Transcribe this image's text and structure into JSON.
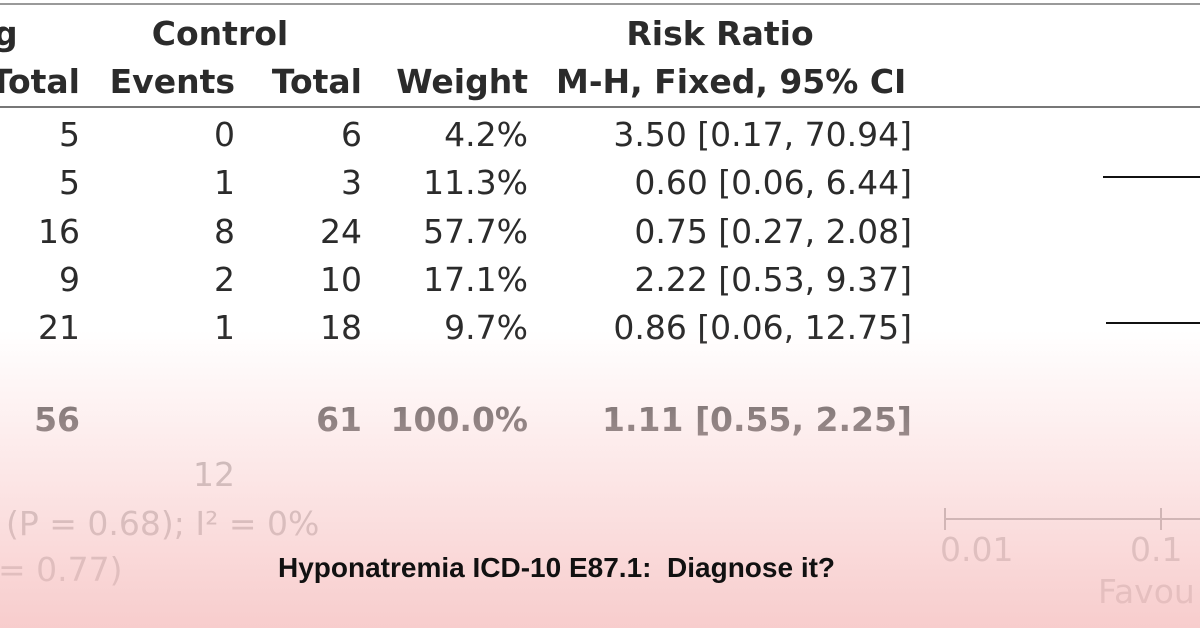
{
  "header": {
    "group_left_fragment": "g",
    "group_control": "Control",
    "risk_ratio": "Risk Ratio",
    "col_total_left": "Total",
    "col_events": "Events",
    "col_total": "Total",
    "col_weight": "Weight",
    "col_method": "M-H, Fixed, 95% CI"
  },
  "rows": [
    {
      "total_left": "5",
      "events": "0",
      "total": "6",
      "weight": "4.2%",
      "ci": "3.50 [0.17, 70.94]"
    },
    {
      "total_left": "5",
      "events": "1",
      "total": "3",
      "weight": "11.3%",
      "ci": "0.60 [0.06, 6.44]"
    },
    {
      "total_left": "16",
      "events": "8",
      "total": "24",
      "weight": "57.7%",
      "ci": "0.75 [0.27, 2.08]"
    },
    {
      "total_left": "9",
      "events": "2",
      "total": "10",
      "weight": "17.1%",
      "ci": "2.22 [0.53, 9.37]"
    },
    {
      "total_left": "21",
      "events": "1",
      "total": "18",
      "weight": "9.7%",
      "ci": "0.86 [0.06, 12.75]"
    }
  ],
  "summary": {
    "total_left": "56",
    "total": "61",
    "weight": "100.0%",
    "ci": "1.11 [0.55, 2.25]"
  },
  "total_events": "12",
  "heterogeneity_fragment": "(P = 0.68); I² = 0%",
  "overall_effect_fragment": "= 0.77)",
  "axis": {
    "tick_1": "0.01",
    "tick_2": "0.1",
    "favours_fragment": "Favou"
  },
  "caption": "Hyponatremia ICD-10 E87.1:  Diagnose it?"
}
